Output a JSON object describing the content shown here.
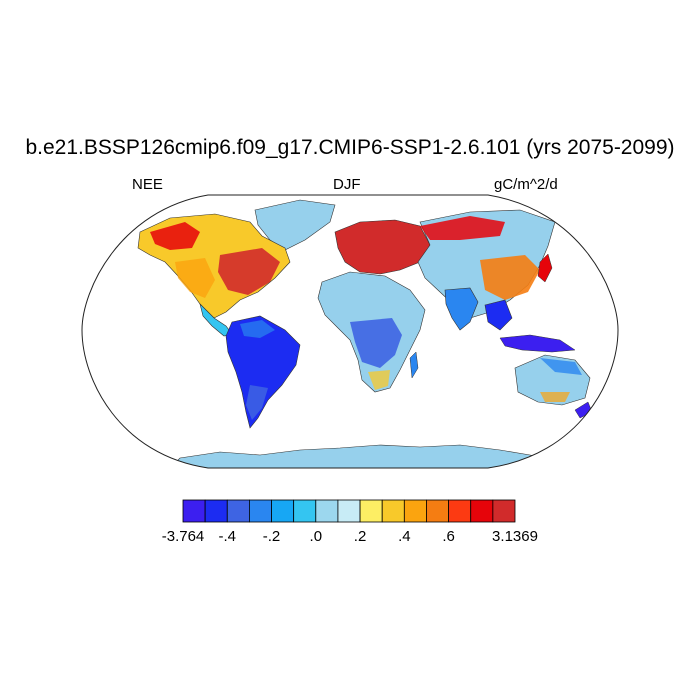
{
  "title": "b.e21.BSSP126cmip6.f09_g17.CMIP6-SSP1-2.6.101 (yrs 2075-2099)",
  "variable": "NEE",
  "season": "DJF",
  "units": "gC/m^2/d",
  "colorbar": {
    "colors": [
      "#3c1ff0",
      "#1c2cf2",
      "#3e64e3",
      "#2a86f0",
      "#17a7f4",
      "#34c5f1",
      "#9cd7ee",
      "#c8ecf6",
      "#fdee64",
      "#f8c92a",
      "#fba40f",
      "#f57d12",
      "#fc3a12",
      "#e6040a",
      "#d12b2b"
    ],
    "labels": [
      "-3.764",
      "-.4",
      "-.2",
      ".0",
      ".2",
      ".4",
      ".6",
      "3.1369"
    ]
  },
  "map": {
    "ocean_color": "#ffffff",
    "land_base_color": "#96d0ec",
    "antarctica_color": "#96d0ec"
  }
}
